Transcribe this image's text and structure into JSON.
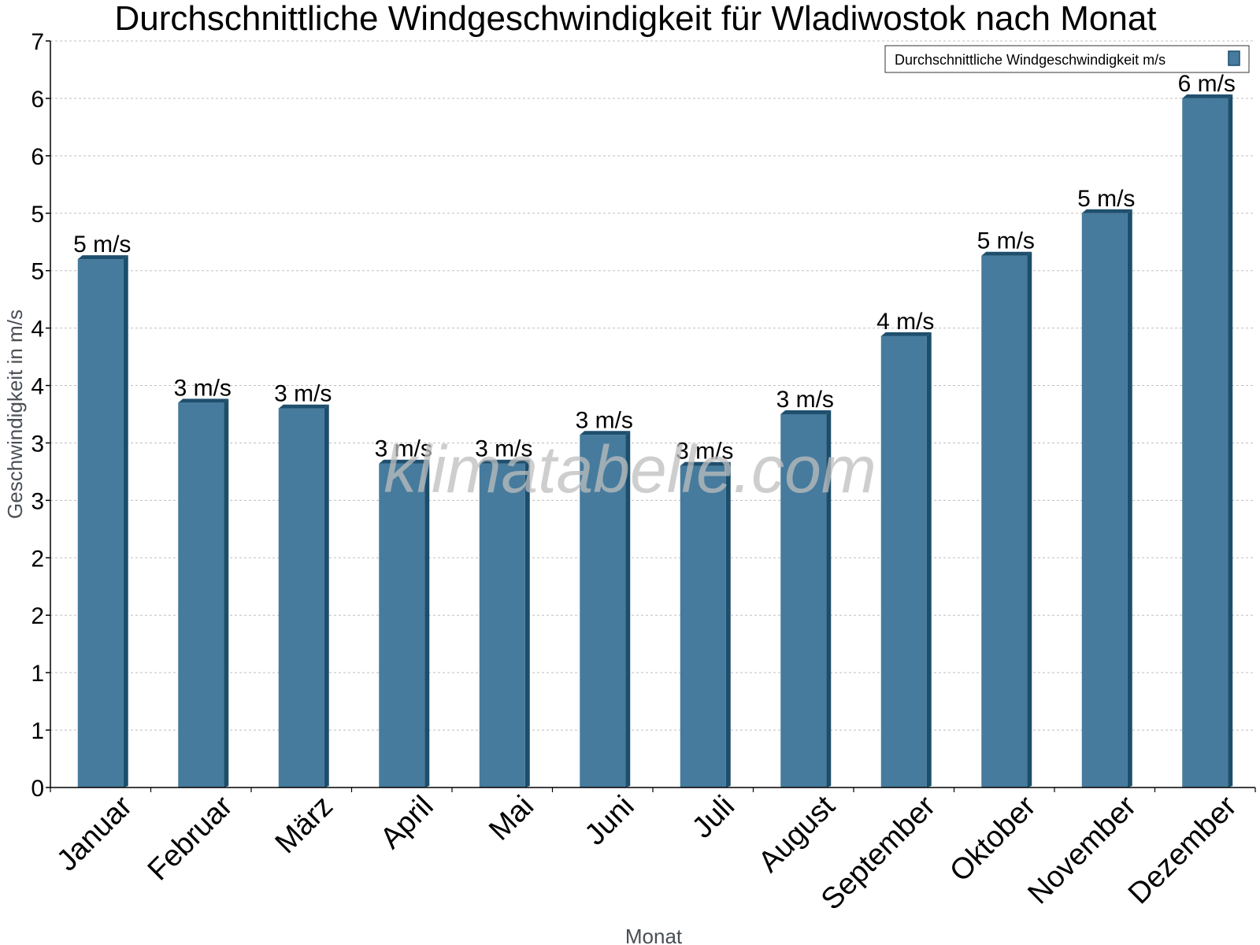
{
  "watermark": "klimatabelle.com",
  "colors": {
    "bar_face": "#467b9d",
    "bar_side": "#1c4e6c",
    "bar_top": "#1f4f6e",
    "grid": "#bfbfbf",
    "axis": "#000000"
  },
  "chart_data": {
    "type": "bar",
    "title": "Durchschnittliche Windgeschwindigkeit für Wladiwostok nach Monat",
    "xlabel": "Monat",
    "ylabel": "Geschwindigkeit in m/s",
    "ylim": [
      0,
      6.5
    ],
    "grid": true,
    "legend_position": "top-right",
    "y_ticks": [
      {
        "value": 0,
        "label": "0"
      },
      {
        "value": 0.5,
        "label": "1"
      },
      {
        "value": 1,
        "label": "1"
      },
      {
        "value": 1.5,
        "label": "2"
      },
      {
        "value": 2,
        "label": "2"
      },
      {
        "value": 2.5,
        "label": "3"
      },
      {
        "value": 3,
        "label": "3"
      },
      {
        "value": 3.5,
        "label": "4"
      },
      {
        "value": 4,
        "label": "4"
      },
      {
        "value": 4.5,
        "label": "5"
      },
      {
        "value": 5,
        "label": "5"
      },
      {
        "value": 5.5,
        "label": "6"
      },
      {
        "value": 6,
        "label": "6"
      },
      {
        "value": 6.5,
        "label": "7"
      }
    ],
    "categories": [
      "Januar",
      "Februar",
      "März",
      "April",
      "Mai",
      "Juni",
      "Juli",
      "August",
      "September",
      "Oktober",
      "November",
      "Dezember"
    ],
    "series": [
      {
        "name": "Durchschnittliche Windgeschwindigkeit m/s",
        "values": [
          4.6,
          3.35,
          3.3,
          2.82,
          2.82,
          3.07,
          2.8,
          3.25,
          3.93,
          4.63,
          5.0,
          6.0
        ],
        "labels": [
          "5 m/s",
          "3 m/s",
          "3 m/s",
          "3 m/s",
          "3 m/s",
          "3 m/s",
          "3 m/s",
          "3 m/s",
          "4 m/s",
          "5 m/s",
          "5 m/s",
          "6 m/s"
        ]
      }
    ]
  }
}
